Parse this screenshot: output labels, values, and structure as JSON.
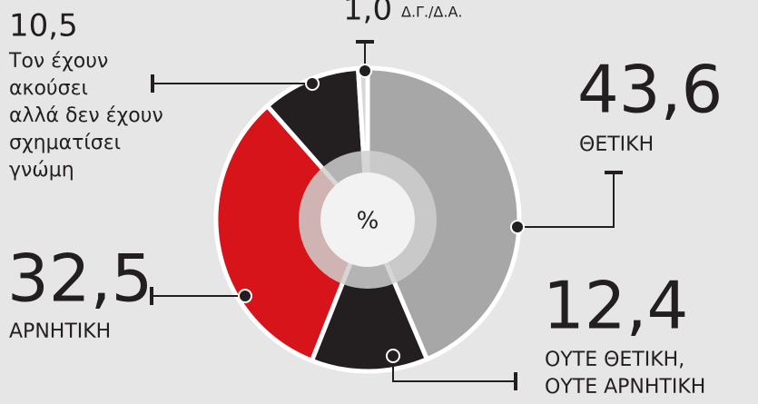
{
  "chart_data": {
    "type": "donut",
    "center_label": "%",
    "categories": [
      [
        "ΘΕΤΙΚΗ"
      ],
      [
        "ΟΥΤΕ ΘΕΤΙΚΗ,",
        "ΟΥΤΕ ΑΡΝΗΤΙΚΗ"
      ],
      [
        "ΑΡΝΗΤΙΚΗ"
      ],
      [
        "Τον έχουν",
        "ακούσει",
        "αλλά δεν έχουν",
        "σχηματίσει",
        "γνώμη"
      ],
      [
        "Δ.Γ./Δ.Α."
      ]
    ],
    "values": [
      43.6,
      12.4,
      32.5,
      10.5,
      1.0
    ],
    "value_labels": [
      "43,6",
      "12,4",
      "32,5",
      "10,5",
      "1,0"
    ],
    "colors": [
      "#a7a7a7",
      "#231f20",
      "#d7141a",
      "#231f20",
      "#d6d6d6"
    ]
  }
}
